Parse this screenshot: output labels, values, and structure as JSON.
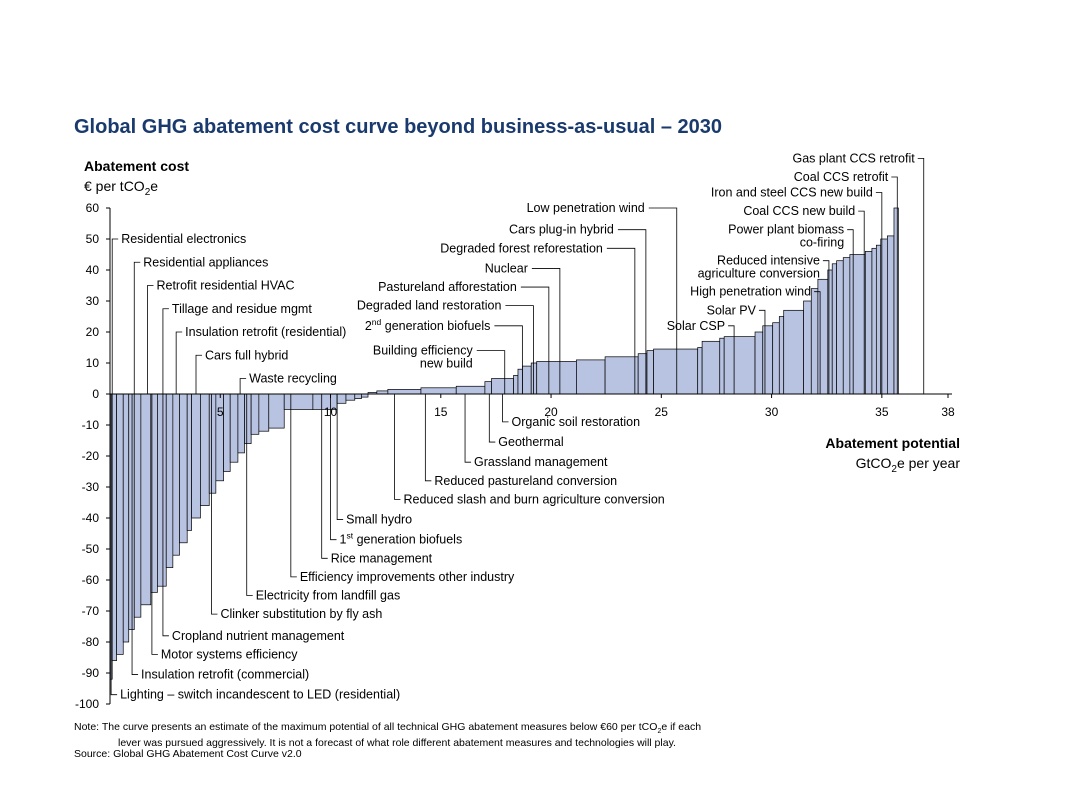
{
  "chart_data": {
    "type": "bar",
    "title": "Global GHG abatement cost curve beyond business-as-usual – 2030",
    "ylabel": "Abatement cost",
    "yunit": "€ per tCO",
    "yunit_sub": "2",
    "yunit_tail": "e",
    "xlabel": "Abatement potential",
    "xunit": "GtCO",
    "xunit_sub": "2",
    "xunit_tail": "e per year",
    "ylim": [
      -100,
      60
    ],
    "xlim": [
      0,
      38
    ],
    "yticks": [
      60,
      50,
      40,
      30,
      20,
      10,
      0,
      -10,
      -20,
      -30,
      -40,
      -50,
      -60,
      -70,
      -80,
      -90,
      -100
    ],
    "xticks": [
      5,
      10,
      15,
      20,
      25,
      30,
      35,
      38
    ],
    "bar_fill": "#b8c3e1",
    "bar_edge": "#000000",
    "title_color": "#1a3a6e",
    "bars": [
      {
        "w": 0.1,
        "v": -92
      },
      {
        "w": 0.2,
        "v": -86
      },
      {
        "w": 0.3,
        "v": -84
      },
      {
        "w": 0.25,
        "v": -80
      },
      {
        "w": 0.25,
        "v": -76
      },
      {
        "w": 0.3,
        "v": -72
      },
      {
        "w": 0.45,
        "v": -68
      },
      {
        "w": 0.3,
        "v": -64
      },
      {
        "w": 0.4,
        "v": -62
      },
      {
        "w": 0.3,
        "v": -56
      },
      {
        "w": 0.3,
        "v": -52
      },
      {
        "w": 0.35,
        "v": -48
      },
      {
        "w": 0.2,
        "v": -44
      },
      {
        "w": 0.4,
        "v": -40
      },
      {
        "w": 0.4,
        "v": -36
      },
      {
        "w": 0.3,
        "v": -32
      },
      {
        "w": 0.35,
        "v": -28
      },
      {
        "w": 0.3,
        "v": -25
      },
      {
        "w": 0.35,
        "v": -22
      },
      {
        "w": 0.3,
        "v": -19
      },
      {
        "w": 0.3,
        "v": -16
      },
      {
        "w": 0.35,
        "v": -13
      },
      {
        "w": 0.45,
        "v": -12
      },
      {
        "w": 0.7,
        "v": -11
      },
      {
        "w": 1.3,
        "v": -5
      },
      {
        "w": 1.1,
        "v": -5
      },
      {
        "w": 0.4,
        "v": -3
      },
      {
        "w": 0.4,
        "v": -2
      },
      {
        "w": 0.3,
        "v": -1.5
      },
      {
        "w": 0.3,
        "v": -1
      },
      {
        "w": 0.4,
        "v": 0.5
      },
      {
        "w": 0.5,
        "v": 1
      },
      {
        "w": 1.5,
        "v": 1.5
      },
      {
        "w": 1.6,
        "v": 2
      },
      {
        "w": 1.3,
        "v": 2.5
      },
      {
        "w": 0.3,
        "v": 4
      },
      {
        "w": 1.0,
        "v": 5
      },
      {
        "w": 0.2,
        "v": 6
      },
      {
        "w": 0.2,
        "v": 8
      },
      {
        "w": 0.4,
        "v": 9
      },
      {
        "w": 0.25,
        "v": 10
      },
      {
        "w": 1.8,
        "v": 10.5
      },
      {
        "w": 1.3,
        "v": 11
      },
      {
        "w": 1.5,
        "v": 12
      },
      {
        "w": 0.4,
        "v": 13
      },
      {
        "w": 0.3,
        "v": 14
      },
      {
        "w": 2.0,
        "v": 14.5
      },
      {
        "w": 0.2,
        "v": 15
      },
      {
        "w": 0.8,
        "v": 17
      },
      {
        "w": 0.2,
        "v": 18
      },
      {
        "w": 1.4,
        "v": 18.5
      },
      {
        "w": 0.35,
        "v": 20
      },
      {
        "w": 0.45,
        "v": 22
      },
      {
        "w": 0.3,
        "v": 23
      },
      {
        "w": 0.2,
        "v": 25
      },
      {
        "w": 0.9,
        "v": 27
      },
      {
        "w": 0.35,
        "v": 30
      },
      {
        "w": 0.3,
        "v": 34
      },
      {
        "w": 0.45,
        "v": 37
      },
      {
        "w": 0.2,
        "v": 40
      },
      {
        "w": 0.2,
        "v": 42
      },
      {
        "w": 0.3,
        "v": 43
      },
      {
        "w": 0.3,
        "v": 44
      },
      {
        "w": 0.7,
        "v": 45
      },
      {
        "w": 0.3,
        "v": 46
      },
      {
        "w": 0.2,
        "v": 47
      },
      {
        "w": 0.2,
        "v": 48
      },
      {
        "w": 0.3,
        "v": 50
      },
      {
        "w": 0.3,
        "v": 51
      },
      {
        "w": 0.2,
        "v": 60
      }
    ],
    "annotations_left": [
      {
        "label": "Residential electronics",
        "x": 0.1,
        "y": 50
      },
      {
        "label": "Residential appliances",
        "x": 1.1,
        "y": 42.5
      },
      {
        "label": "Retrofit residential HVAC",
        "x": 1.7,
        "y": 35
      },
      {
        "label": "Tillage and residue mgmt",
        "x": 2.4,
        "y": 27.5
      },
      {
        "label": "Insulation retrofit (residential)",
        "x": 3.0,
        "y": 20
      },
      {
        "label": "Cars full hybrid",
        "x": 3.9,
        "y": 12.5
      },
      {
        "label": "Waste recycling",
        "x": 5.9,
        "y": 5
      }
    ],
    "annotations_below": [
      {
        "label": "Organic soil restoration",
        "x": 17.8,
        "y": -9
      },
      {
        "label": "Geothermal",
        "x": 17.2,
        "y": -15.5
      },
      {
        "label": "Grassland management",
        "x": 16.1,
        "y": -22
      },
      {
        "label": "Reduced pastureland conversion",
        "x": 14.3,
        "y": -28
      },
      {
        "label": "Reduced slash and burn agriculture conversion",
        "x": 12.9,
        "y": -34
      },
      {
        "label": "Small hydro",
        "x": 10.3,
        "y": -40.5
      },
      {
        "label": "1st generation biofuels",
        "x": 10.0,
        "y": -47
      },
      {
        "label": "Rice management",
        "x": 9.6,
        "y": -53
      },
      {
        "label": "Efficiency improvements other industry",
        "x": 8.2,
        "y": -59
      },
      {
        "label": "Electricity from landfill gas",
        "x": 6.2,
        "y": -65
      },
      {
        "label": "Clinker substitution by fly ash",
        "x": 4.6,
        "y": -71
      },
      {
        "label": "Cropland nutrient management",
        "x": 2.4,
        "y": -78
      },
      {
        "label": "Motor systems efficiency",
        "x": 1.9,
        "y": -84
      },
      {
        "label": "Insulation retrofit (commercial)",
        "x": 1.0,
        "y": -90.5
      },
      {
        "label": "Lighting – switch incandescent to LED (residential)",
        "x": 0.05,
        "y": -97
      }
    ],
    "annotations_right": [
      {
        "label": "Low penetration wind",
        "x": 25.7,
        "y": 60
      },
      {
        "label": "Cars plug-in hybrid",
        "x": 24.3,
        "y": 53
      },
      {
        "label": "Degraded forest reforestation",
        "x": 23.8,
        "y": 47
      },
      {
        "label": "Nuclear",
        "x": 20.4,
        "y": 40.5
      },
      {
        "label": "Pastureland afforestation",
        "x": 19.9,
        "y": 34.5
      },
      {
        "label": "Degraded land restoration",
        "x": 19.2,
        "y": 28.5
      },
      {
        "label": "generation biofuels",
        "sup": "nd",
        "prefix": "2",
        "x": 18.7,
        "y": 22
      },
      {
        "label": "Building efficiency",
        "label2": "new build",
        "x": 17.9,
        "y": 14
      }
    ],
    "annotations_top": [
      {
        "label": "Gas plant CCS retrofit",
        "x": 36.9,
        "y": 76
      },
      {
        "label": "Coal CCS retrofit",
        "x": 35.7,
        "y": 70
      },
      {
        "label": "Iron and steel CCS new build",
        "x": 35.0,
        "y": 65
      },
      {
        "label": "Coal CCS new build",
        "x": 34.2,
        "y": 59
      },
      {
        "label": "Power plant biomass",
        "label2": "co-firing",
        "x": 33.7,
        "y": 53
      },
      {
        "label": "Reduced intensive",
        "label2": "agriculture conversion",
        "x": 32.6,
        "y": 43
      },
      {
        "label": "High penetration wind",
        "x": 32.2,
        "y": 33
      },
      {
        "label": "Solar PV",
        "x": 29.7,
        "y": 27
      },
      {
        "label": "Solar CSP",
        "x": 28.3,
        "y": 22
      }
    ]
  },
  "note_line1_a": "Note: The curve presents an estimate of the maximum potential of all technical GHG abatement measures below €60 per tCO",
  "note_line1_sub": "2",
  "note_line1_b": "e if each",
  "note_line2": "lever was pursued aggressively. It is not a forecast of what role different abatement measures and technologies will play.",
  "source": "Source: Global GHG Abatement Cost Curve v2.0"
}
